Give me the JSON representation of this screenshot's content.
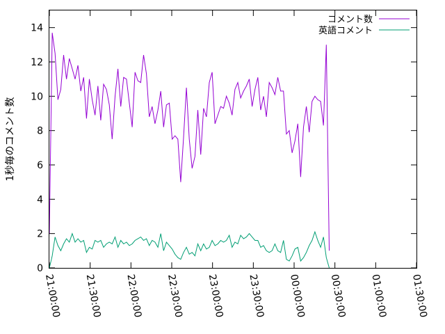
{
  "chart_data": {
    "type": "line",
    "ylabel": "1秒毎のコメント数",
    "xlabel": "",
    "title": "",
    "xlim": [
      "21:00:00",
      "01:30:00"
    ],
    "ylim": [
      0,
      15
    ],
    "grid": false,
    "legend_position": "top-right",
    "x_tick_labels": [
      "21:00:00",
      "21:30:00",
      "22:00:00",
      "22:30:00",
      "23:00:00",
      "23:30:00",
      "00:00:00",
      "00:30:00",
      "01:00:00",
      "01:30:00"
    ],
    "y_tick_labels": [
      "0",
      "2",
      "4",
      "6",
      "8",
      "10",
      "12",
      "14"
    ],
    "y_ticks": [
      0,
      2,
      4,
      6,
      8,
      10,
      12,
      14
    ],
    "x_step_minutes": 2.1,
    "series": [
      {
        "name": "コメント数",
        "color": "#9400d3",
        "values": [
          2.0,
          13.7,
          12.5,
          9.8,
          10.4,
          12.4,
          11.0,
          12.2,
          11.6,
          11.0,
          11.8,
          10.3,
          11.1,
          8.7,
          11.0,
          9.8,
          8.9,
          10.6,
          8.6,
          10.7,
          10.4,
          9.5,
          7.5,
          10.0,
          11.6,
          9.4,
          11.1,
          11.0,
          9.6,
          8.2,
          11.4,
          10.9,
          10.8,
          12.4,
          11.3,
          8.8,
          9.4,
          8.4,
          9.2,
          10.3,
          8.2,
          9.5,
          9.6,
          7.5,
          7.7,
          7.5,
          5.0,
          7.6,
          10.5,
          7.5,
          5.8,
          6.5,
          9.2,
          6.6,
          9.3,
          8.8,
          10.8,
          11.4,
          8.4,
          8.9,
          9.4,
          9.3,
          10.0,
          9.6,
          8.9,
          10.4,
          10.8,
          9.9,
          10.3,
          10.6,
          11.0,
          9.4,
          10.4,
          11.1,
          9.2,
          10.0,
          8.8,
          10.8,
          10.5,
          10.1,
          11.1,
          10.3,
          10.3,
          7.8,
          8.0,
          6.7,
          7.4,
          8.4,
          5.3,
          8.2,
          9.4,
          7.9,
          9.7,
          10.0,
          9.8,
          9.7,
          8.3,
          13.0,
          1.0
        ],
        "line_overshoot_before_end": 1
      },
      {
        "name": "英語コメント",
        "color": "#009e73",
        "values": [
          0.0,
          0.7,
          1.8,
          1.3,
          1.0,
          1.4,
          1.7,
          1.5,
          2.0,
          1.5,
          1.7,
          1.5,
          1.6,
          0.9,
          1.2,
          1.1,
          1.6,
          1.5,
          1.6,
          1.2,
          1.4,
          1.5,
          1.4,
          1.8,
          1.2,
          1.6,
          1.4,
          1.5,
          1.3,
          1.4,
          1.6,
          1.7,
          1.8,
          1.6,
          1.7,
          1.3,
          1.6,
          1.5,
          1.2,
          2.0,
          1.0,
          1.5,
          1.3,
          1.1,
          0.8,
          0.6,
          0.5,
          0.9,
          1.2,
          0.8,
          0.9,
          0.7,
          1.4,
          1.0,
          1.4,
          1.1,
          1.2,
          1.6,
          1.3,
          1.4,
          1.6,
          1.5,
          1.6,
          1.9,
          1.2,
          1.5,
          1.4,
          1.9,
          1.7,
          1.8,
          2.0,
          1.8,
          1.6,
          1.6,
          1.2,
          1.3,
          1.0,
          0.9,
          1.0,
          1.4,
          1.0,
          0.9,
          1.6,
          0.5,
          0.4,
          0.7,
          1.1,
          1.2,
          0.4,
          0.6,
          0.9,
          1.3,
          1.6,
          2.1,
          1.6,
          1.2,
          1.8,
          0.6,
          0.0
        ]
      }
    ]
  }
}
